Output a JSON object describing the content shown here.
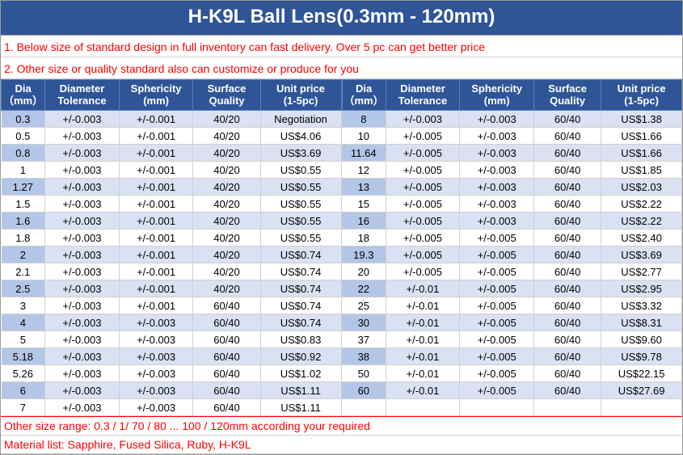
{
  "title": "H-K9L Ball Lens(0.3mm - 120mm)",
  "notes": {
    "n1": "1. Below size of standard design in full inventory can fast delivery. Over 5 pc can get better price",
    "n2": "2. Other size or quality standard also can customize or produce for you"
  },
  "headers": {
    "dia": "Dia\n（mm）",
    "diatol": "Diameter\nTolerance",
    "sph": "Sphericity\n(mm)",
    "surf": "Surface\nQuality",
    "price": "Unit price\n(1-5pc)"
  },
  "left_rows": [
    {
      "dia": "0.3",
      "tol": "+/-0.003",
      "sph": "+/-0.001",
      "surf": "40/20",
      "price": "Negotiation"
    },
    {
      "dia": "0.5",
      "tol": "+/-0.003",
      "sph": "+/-0.001",
      "surf": "40/20",
      "price": "US$4.06"
    },
    {
      "dia": "0.8",
      "tol": "+/-0.003",
      "sph": "+/-0.001",
      "surf": "40/20",
      "price": "US$3.69"
    },
    {
      "dia": "1",
      "tol": "+/-0.003",
      "sph": "+/-0.001",
      "surf": "40/20",
      "price": "US$0.55"
    },
    {
      "dia": "1.27",
      "tol": "+/-0.003",
      "sph": "+/-0.001",
      "surf": "40/20",
      "price": "US$0.55"
    },
    {
      "dia": "1.5",
      "tol": "+/-0.003",
      "sph": "+/-0.001",
      "surf": "40/20",
      "price": "US$0.55"
    },
    {
      "dia": "1.6",
      "tol": "+/-0.003",
      "sph": "+/-0.001",
      "surf": "40/20",
      "price": "US$0.55"
    },
    {
      "dia": "1.8",
      "tol": "+/-0.003",
      "sph": "+/-0.001",
      "surf": "40/20",
      "price": "US$0.55"
    },
    {
      "dia": "2",
      "tol": "+/-0.003",
      "sph": "+/-0.001",
      "surf": "40/20",
      "price": "US$0.74"
    },
    {
      "dia": "2.1",
      "tol": "+/-0.003",
      "sph": "+/-0.001",
      "surf": "40/20",
      "price": "US$0.74"
    },
    {
      "dia": "2.5",
      "tol": "+/-0.003",
      "sph": "+/-0.001",
      "surf": "40/20",
      "price": "US$0.74"
    },
    {
      "dia": "3",
      "tol": "+/-0.003",
      "sph": "+/-0.001",
      "surf": "60/40",
      "price": "US$0.74"
    },
    {
      "dia": "4",
      "tol": "+/-0.003",
      "sph": "+/-0.003",
      "surf": "60/40",
      "price": "US$0.74"
    },
    {
      "dia": "5",
      "tol": "+/-0.003",
      "sph": "+/-0.003",
      "surf": "60/40",
      "price": "US$0.83"
    },
    {
      "dia": "5.18",
      "tol": "+/-0.003",
      "sph": "+/-0.003",
      "surf": "60/40",
      "price": "US$0.92"
    },
    {
      "dia": "5.26",
      "tol": "+/-0.003",
      "sph": "+/-0.003",
      "surf": "60/40",
      "price": "US$1.02"
    },
    {
      "dia": "6",
      "tol": "+/-0.003",
      "sph": "+/-0.003",
      "surf": "60/40",
      "price": "US$1.11"
    },
    {
      "dia": "7",
      "tol": "+/-0.003",
      "sph": "+/-0.003",
      "surf": "60/40",
      "price": "US$1.11"
    }
  ],
  "right_rows": [
    {
      "dia": "8",
      "tol": "+/-0.003",
      "sph": "+/-0.003",
      "surf": "60/40",
      "price": "US$1.38"
    },
    {
      "dia": "10",
      "tol": "+/-0.005",
      "sph": "+/-0.003",
      "surf": "60/40",
      "price": "US$1.66"
    },
    {
      "dia": "11.64",
      "tol": "+/-0.005",
      "sph": "+/-0.003",
      "surf": "60/40",
      "price": "US$1.66"
    },
    {
      "dia": "12",
      "tol": "+/-0.005",
      "sph": "+/-0.003",
      "surf": "60/40",
      "price": "US$1.85"
    },
    {
      "dia": "13",
      "tol": "+/-0.005",
      "sph": "+/-0.003",
      "surf": "60/40",
      "price": "US$2.03"
    },
    {
      "dia": "15",
      "tol": "+/-0.005",
      "sph": "+/-0.003",
      "surf": "60/40",
      "price": "US$2.22"
    },
    {
      "dia": "16",
      "tol": "+/-0.005",
      "sph": "+/-0.003",
      "surf": "60/40",
      "price": "US$2.22"
    },
    {
      "dia": "18",
      "tol": "+/-0.005",
      "sph": "+/-0.005",
      "surf": "60/40",
      "price": "US$2.40"
    },
    {
      "dia": "19.3",
      "tol": "+/-0.005",
      "sph": "+/-0.005",
      "surf": "60/40",
      "price": "US$3.69"
    },
    {
      "dia": "20",
      "tol": "+/-0.005",
      "sph": "+/-0.005",
      "surf": "60/40",
      "price": "US$2.77"
    },
    {
      "dia": "22",
      "tol": "+/-0.01",
      "sph": "+/-0.005",
      "surf": "60/40",
      "price": "US$2.95"
    },
    {
      "dia": "25",
      "tol": "+/-0.01",
      "sph": "+/-0.005",
      "surf": "60/40",
      "price": "US$3.32"
    },
    {
      "dia": "30",
      "tol": "+/-0.01",
      "sph": "+/-0.005",
      "surf": "60/40",
      "price": "US$8.31"
    },
    {
      "dia": "37",
      "tol": "+/-0.01",
      "sph": "+/-0.005",
      "surf": "60/40",
      "price": "US$9.60"
    },
    {
      "dia": "38",
      "tol": "+/-0.01",
      "sph": "+/-0.005",
      "surf": "60/40",
      "price": "US$9.78"
    },
    {
      "dia": "50",
      "tol": "+/-0.01",
      "sph": "+/-0.005",
      "surf": "60/40",
      "price": "US$22.15"
    },
    {
      "dia": "60",
      "tol": "+/-0.01",
      "sph": "+/-0.005",
      "surf": "60/40",
      "price": "US$27.69"
    },
    {
      "dia": "",
      "tol": "",
      "sph": "",
      "surf": "",
      "price": ""
    }
  ],
  "footers": {
    "f1": "Other size range: 0.3 / 1/ 70 / 80 ... 100 / 120mm according your required",
    "f2": "Material list: Sapphire, Fused Silica, Ruby, H-K9L"
  },
  "colors": {
    "header_bg": "#2f5597",
    "alt_first": "#b4c6e7",
    "alt_rest": "#d9e1f2",
    "note_color": "#ff0000"
  },
  "col_widths_pct": [
    12,
    22,
    22,
    20,
    24
  ]
}
